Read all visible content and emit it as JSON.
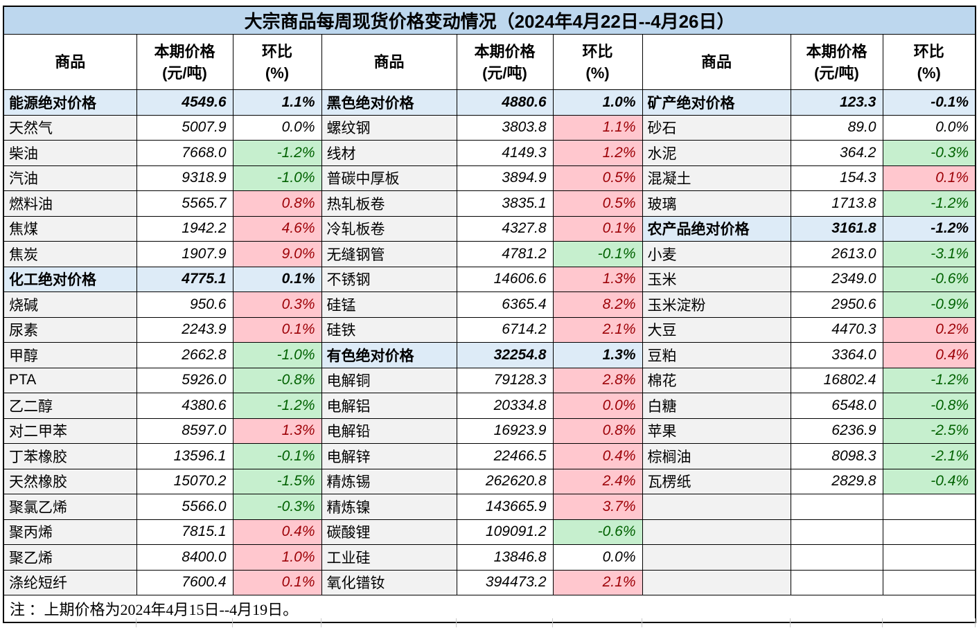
{
  "chart_data": {
    "type": "table",
    "title": "大宗商品每周现货价格变动情况（2024年4月22日--4月26日）",
    "note": "注 ：上期价格为2024年4月15日--4月19日。",
    "header": {
      "commodity": "商品",
      "price_line1": "本期价格",
      "price_line2": "(元/吨)",
      "chg_line1": "环比",
      "chg_line2": "(%)"
    },
    "groups": [
      {
        "rows": [
          {
            "name": "能源绝对价格",
            "price": "4549.6",
            "chg": "1.1%",
            "type": "sum"
          },
          {
            "name": "天然气",
            "price": "5007.9",
            "chg": "0.0%",
            "type": "flat"
          },
          {
            "name": "柴油",
            "price": "7668.0",
            "chg": "-1.2%",
            "type": "down"
          },
          {
            "name": "汽油",
            "price": "9318.9",
            "chg": "-1.0%",
            "type": "down"
          },
          {
            "name": "燃料油",
            "price": "5565.7",
            "chg": "0.8%",
            "type": "up"
          },
          {
            "name": "焦煤",
            "price": "1942.2",
            "chg": "4.6%",
            "type": "up"
          },
          {
            "name": "焦炭",
            "price": "1907.9",
            "chg": "9.0%",
            "type": "up"
          },
          {
            "name": "化工绝对价格",
            "price": "4775.1",
            "chg": "0.1%",
            "type": "sum"
          },
          {
            "name": "烧碱",
            "price": "950.6",
            "chg": "0.3%",
            "type": "up"
          },
          {
            "name": "尿素",
            "price": "2243.9",
            "chg": "0.1%",
            "type": "up"
          },
          {
            "name": "甲醇",
            "price": "2662.8",
            "chg": "-1.0%",
            "type": "down"
          },
          {
            "name": "PTA",
            "price": "5926.0",
            "chg": "-0.8%",
            "type": "down"
          },
          {
            "name": "乙二醇",
            "price": "4380.6",
            "chg": "-1.2%",
            "type": "down"
          },
          {
            "name": "对二甲苯",
            "price": "8597.0",
            "chg": "1.3%",
            "type": "up"
          },
          {
            "name": "丁苯橡胶",
            "price": "13596.1",
            "chg": "-0.1%",
            "type": "down"
          },
          {
            "name": "天然橡胶",
            "price": "15070.2",
            "chg": "-1.5%",
            "type": "down"
          },
          {
            "name": "聚氯乙烯",
            "price": "5566.0",
            "chg": "-0.3%",
            "type": "down"
          },
          {
            "name": "聚丙烯",
            "price": "7815.1",
            "chg": "0.4%",
            "type": "up"
          },
          {
            "name": "聚乙烯",
            "price": "8400.0",
            "chg": "1.0%",
            "type": "up"
          },
          {
            "name": "涤纶短纤",
            "price": "7600.4",
            "chg": "0.1%",
            "type": "up"
          }
        ]
      },
      {
        "rows": [
          {
            "name": "黑色绝对价格",
            "price": "4880.6",
            "chg": "1.0%",
            "type": "sum"
          },
          {
            "name": "螺纹钢",
            "price": "3803.8",
            "chg": "1.1%",
            "type": "up"
          },
          {
            "name": "线材",
            "price": "4149.3",
            "chg": "1.2%",
            "type": "up"
          },
          {
            "name": "普碳中厚板",
            "price": "3894.9",
            "chg": "0.5%",
            "type": "up"
          },
          {
            "name": "热轧板卷",
            "price": "3835.1",
            "chg": "0.5%",
            "type": "up"
          },
          {
            "name": "冷轧板卷",
            "price": "4327.8",
            "chg": "0.1%",
            "type": "up"
          },
          {
            "name": "无缝钢管",
            "price": "4781.2",
            "chg": "-0.1%",
            "type": "down"
          },
          {
            "name": "不锈钢",
            "price": "14606.6",
            "chg": "1.3%",
            "type": "up"
          },
          {
            "name": "硅锰",
            "price": "6365.4",
            "chg": "8.2%",
            "type": "up"
          },
          {
            "name": "硅铁",
            "price": "6714.2",
            "chg": "2.1%",
            "type": "up"
          },
          {
            "name": "有色绝对价格",
            "price": "32254.8",
            "chg": "1.3%",
            "type": "sum"
          },
          {
            "name": "电解铜",
            "price": "79128.3",
            "chg": "2.8%",
            "type": "up"
          },
          {
            "name": "电解铝",
            "price": "20334.8",
            "chg": "0.0%",
            "type": "up"
          },
          {
            "name": "电解铅",
            "price": "16923.9",
            "chg": "0.8%",
            "type": "up"
          },
          {
            "name": "电解锌",
            "price": "22466.5",
            "chg": "0.4%",
            "type": "up"
          },
          {
            "name": "精炼锡",
            "price": "262620.8",
            "chg": "2.4%",
            "type": "up"
          },
          {
            "name": "精炼镍",
            "price": "143665.9",
            "chg": "3.7%",
            "type": "up"
          },
          {
            "name": "碳酸锂",
            "price": "109091.2",
            "chg": "-0.6%",
            "type": "down"
          },
          {
            "name": "工业硅",
            "price": "13846.8",
            "chg": "0.0%",
            "type": "flat"
          },
          {
            "name": "氧化镨钕",
            "price": "394473.2",
            "chg": "2.1%",
            "type": "up"
          }
        ]
      },
      {
        "rows": [
          {
            "name": "矿产绝对价格",
            "price": "123.3",
            "chg": "-0.1%",
            "type": "sum"
          },
          {
            "name": "砂石",
            "price": "89.0",
            "chg": "0.0%",
            "type": "flat"
          },
          {
            "name": "水泥",
            "price": "364.2",
            "chg": "-0.3%",
            "type": "down"
          },
          {
            "name": "混凝土",
            "price": "154.3",
            "chg": "0.1%",
            "type": "up"
          },
          {
            "name": "玻璃",
            "price": "1713.8",
            "chg": "-1.2%",
            "type": "down"
          },
          {
            "name": "农产品绝对价格",
            "price": "3161.8",
            "chg": "-1.2%",
            "type": "sum"
          },
          {
            "name": "小麦",
            "price": "2613.0",
            "chg": "-3.1%",
            "type": "down"
          },
          {
            "name": "玉米",
            "price": "2349.0",
            "chg": "-0.6%",
            "type": "down"
          },
          {
            "name": "玉米淀粉",
            "price": "2950.6",
            "chg": "-0.9%",
            "type": "down"
          },
          {
            "name": "大豆",
            "price": "4470.3",
            "chg": "0.2%",
            "type": "up"
          },
          {
            "name": "豆粕",
            "price": "3364.0",
            "chg": "0.4%",
            "type": "up"
          },
          {
            "name": "棉花",
            "price": "16802.4",
            "chg": "-1.2%",
            "type": "down"
          },
          {
            "name": "白糖",
            "price": "6548.0",
            "chg": "-0.8%",
            "type": "down"
          },
          {
            "name": "苹果",
            "price": "6236.9",
            "chg": "-2.5%",
            "type": "down"
          },
          {
            "name": "棕榈油",
            "price": "8098.3",
            "chg": "-2.1%",
            "type": "down"
          },
          {
            "name": "瓦楞纸",
            "price": "2829.8",
            "chg": "-0.4%",
            "type": "down"
          },
          {
            "name": "",
            "price": "",
            "chg": "",
            "type": "empty"
          },
          {
            "name": "",
            "price": "",
            "chg": "",
            "type": "empty"
          },
          {
            "name": "",
            "price": "",
            "chg": "",
            "type": "empty"
          },
          {
            "name": "",
            "price": "",
            "chg": "",
            "type": "empty"
          }
        ]
      }
    ],
    "layout": {
      "row_count": 20,
      "group_count": 3,
      "legend_note": ""
    }
  },
  "colors": {
    "title_bg": "#BDD7EE",
    "summary_bg": "#DDEBF7",
    "name_bg": "#F2F2F2",
    "up_bg": "#FFC7CE",
    "up_text": "#9C0006",
    "down_bg": "#C6EFCE",
    "down_text": "#006100",
    "border": "#000000"
  }
}
